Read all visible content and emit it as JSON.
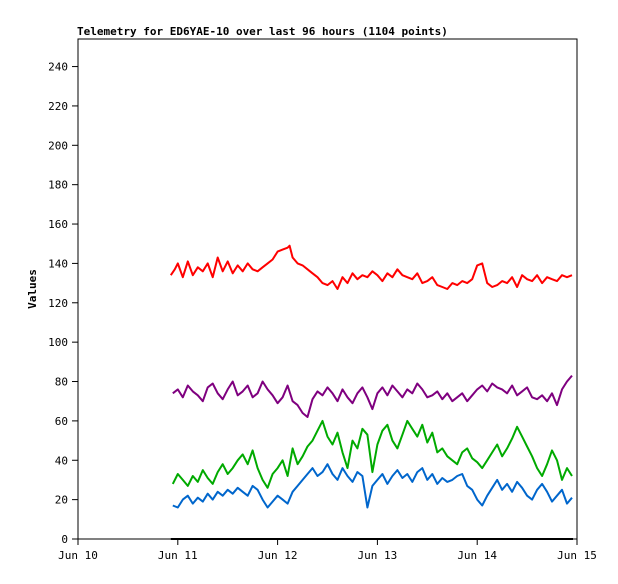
{
  "chart_data": {
    "type": "line",
    "title": "Telemetry for ED6YAE-10 over last 96 hours (1104 points)",
    "xlabel": "",
    "ylabel": "Values",
    "x_ticks": [
      "Jun 10",
      "Jun 11",
      "Jun 12",
      "Jun 13",
      "Jun 14",
      "Jun 15"
    ],
    "xlim": [
      "Jun 10",
      "Jun 15"
    ],
    "ylim": [
      0,
      254
    ],
    "y_ticks": [
      0,
      20,
      40,
      60,
      80,
      100,
      120,
      140,
      160,
      180,
      200,
      220,
      240
    ],
    "grid": false,
    "legend": "none",
    "series": [
      {
        "color": "#ff0000",
        "x": [
          0.93,
          0.97,
          1.0,
          1.05,
          1.1,
          1.15,
          1.2,
          1.25,
          1.3,
          1.35,
          1.4,
          1.45,
          1.5,
          1.55,
          1.6,
          1.65,
          1.7,
          1.75,
          1.8,
          1.85,
          1.9,
          1.95,
          2.0,
          2.05,
          2.1,
          2.12,
          2.15,
          2.2,
          2.25,
          2.3,
          2.35,
          2.4,
          2.45,
          2.5,
          2.55,
          2.6,
          2.65,
          2.7,
          2.75,
          2.8,
          2.85,
          2.9,
          2.95,
          3.0,
          3.05,
          3.1,
          3.15,
          3.2,
          3.25,
          3.3,
          3.35,
          3.4,
          3.45,
          3.5,
          3.55,
          3.6,
          3.65,
          3.7,
          3.75,
          3.8,
          3.85,
          3.9,
          3.95,
          4.0,
          4.05,
          4.1,
          4.15,
          4.2,
          4.25,
          4.3,
          4.35,
          4.4,
          4.45,
          4.5,
          4.55,
          4.6,
          4.65,
          4.7,
          4.75,
          4.8,
          4.85,
          4.9,
          4.95
        ],
        "y": [
          134,
          137,
          140,
          133,
          141,
          134,
          138,
          136,
          140,
          133,
          143,
          136,
          141,
          135,
          139,
          136,
          140,
          137,
          136,
          138,
          140,
          142,
          146,
          147,
          148,
          149,
          143,
          140,
          139,
          137,
          135,
          133,
          130,
          129,
          131,
          127,
          133,
          130,
          135,
          132,
          134,
          133,
          136,
          134,
          131,
          135,
          133,
          137,
          134,
          133,
          132,
          135,
          130,
          131,
          133,
          129,
          128,
          127,
          130,
          129,
          131,
          130,
          132,
          139,
          140,
          130,
          128,
          129,
          131,
          130,
          133,
          128,
          134,
          132,
          131,
          134,
          130,
          133,
          132,
          131,
          134,
          133,
          134
        ]
      },
      {
        "color": "#7f007f",
        "x": [
          0.95,
          1.0,
          1.05,
          1.1,
          1.15,
          1.2,
          1.25,
          1.3,
          1.35,
          1.4,
          1.45,
          1.5,
          1.55,
          1.6,
          1.65,
          1.7,
          1.75,
          1.8,
          1.85,
          1.9,
          1.95,
          2.0,
          2.05,
          2.1,
          2.15,
          2.2,
          2.25,
          2.3,
          2.35,
          2.4,
          2.45,
          2.5,
          2.55,
          2.6,
          2.65,
          2.7,
          2.75,
          2.8,
          2.85,
          2.9,
          2.95,
          3.0,
          3.05,
          3.1,
          3.15,
          3.2,
          3.25,
          3.3,
          3.35,
          3.4,
          3.45,
          3.5,
          3.55,
          3.6,
          3.65,
          3.7,
          3.75,
          3.8,
          3.85,
          3.9,
          3.95,
          4.0,
          4.05,
          4.1,
          4.15,
          4.2,
          4.25,
          4.3,
          4.35,
          4.4,
          4.45,
          4.5,
          4.55,
          4.6,
          4.65,
          4.7,
          4.75,
          4.8,
          4.85,
          4.9,
          4.95
        ],
        "y": [
          74,
          76,
          72,
          78,
          75,
          73,
          70,
          77,
          79,
          74,
          71,
          76,
          80,
          73,
          75,
          78,
          72,
          74,
          80,
          76,
          73,
          69,
          72,
          78,
          70,
          68,
          64,
          62,
          71,
          75,
          73,
          77,
          74,
          70,
          76,
          72,
          69,
          74,
          77,
          72,
          66,
          74,
          77,
          73,
          78,
          75,
          72,
          76,
          74,
          79,
          76,
          72,
          73,
          75,
          71,
          74,
          70,
          72,
          74,
          70,
          73,
          76,
          78,
          75,
          79,
          77,
          76,
          74,
          78,
          73,
          75,
          77,
          72,
          71,
          73,
          70,
          74,
          68,
          76,
          80,
          83
        ]
      },
      {
        "color": "#00aa00",
        "x": [
          0.95,
          1.0,
          1.05,
          1.1,
          1.15,
          1.2,
          1.25,
          1.3,
          1.35,
          1.4,
          1.45,
          1.5,
          1.55,
          1.6,
          1.65,
          1.7,
          1.75,
          1.8,
          1.85,
          1.9,
          1.95,
          2.0,
          2.05,
          2.1,
          2.15,
          2.2,
          2.25,
          2.3,
          2.35,
          2.4,
          2.45,
          2.5,
          2.55,
          2.6,
          2.65,
          2.7,
          2.75,
          2.8,
          2.85,
          2.9,
          2.95,
          3.0,
          3.05,
          3.1,
          3.15,
          3.2,
          3.25,
          3.3,
          3.35,
          3.4,
          3.45,
          3.5,
          3.55,
          3.6,
          3.65,
          3.7,
          3.75,
          3.8,
          3.85,
          3.9,
          3.95,
          4.0,
          4.05,
          4.1,
          4.15,
          4.2,
          4.25,
          4.3,
          4.35,
          4.4,
          4.45,
          4.5,
          4.55,
          4.6,
          4.65,
          4.7,
          4.75,
          4.8,
          4.85,
          4.9,
          4.95
        ],
        "y": [
          28,
          33,
          30,
          27,
          32,
          29,
          35,
          31,
          28,
          34,
          38,
          33,
          36,
          40,
          43,
          38,
          45,
          36,
          30,
          26,
          33,
          36,
          40,
          32,
          46,
          38,
          42,
          47,
          50,
          55,
          60,
          52,
          48,
          54,
          44,
          36,
          50,
          46,
          56,
          53,
          34,
          48,
          55,
          58,
          50,
          46,
          53,
          60,
          56,
          52,
          58,
          49,
          54,
          44,
          46,
          42,
          40,
          38,
          44,
          46,
          41,
          39,
          36,
          40,
          44,
          48,
          42,
          46,
          51,
          57,
          52,
          47,
          42,
          36,
          32,
          38,
          45,
          40,
          30,
          36,
          32
        ]
      },
      {
        "color": "#0066cc",
        "x": [
          0.95,
          1.0,
          1.05,
          1.1,
          1.15,
          1.2,
          1.25,
          1.3,
          1.35,
          1.4,
          1.45,
          1.5,
          1.55,
          1.6,
          1.65,
          1.7,
          1.75,
          1.8,
          1.85,
          1.9,
          1.95,
          2.0,
          2.05,
          2.1,
          2.15,
          2.2,
          2.25,
          2.3,
          2.35,
          2.4,
          2.45,
          2.5,
          2.55,
          2.6,
          2.65,
          2.7,
          2.75,
          2.8,
          2.85,
          2.9,
          2.95,
          3.0,
          3.05,
          3.1,
          3.15,
          3.2,
          3.25,
          3.3,
          3.35,
          3.4,
          3.45,
          3.5,
          3.55,
          3.6,
          3.65,
          3.7,
          3.75,
          3.8,
          3.85,
          3.9,
          3.95,
          4.0,
          4.05,
          4.1,
          4.15,
          4.2,
          4.25,
          4.3,
          4.35,
          4.4,
          4.45,
          4.5,
          4.55,
          4.6,
          4.65,
          4.7,
          4.75,
          4.8,
          4.85,
          4.9,
          4.95
        ],
        "y": [
          17,
          16,
          20,
          22,
          18,
          21,
          19,
          23,
          20,
          24,
          22,
          25,
          23,
          26,
          24,
          22,
          27,
          25,
          20,
          16,
          19,
          22,
          20,
          18,
          24,
          27,
          30,
          33,
          36,
          32,
          34,
          38,
          33,
          30,
          36,
          32,
          29,
          34,
          32,
          16,
          27,
          30,
          33,
          28,
          32,
          35,
          31,
          33,
          29,
          34,
          36,
          30,
          33,
          28,
          31,
          29,
          30,
          32,
          33,
          27,
          25,
          20,
          17,
          22,
          26,
          30,
          25,
          28,
          24,
          29,
          26,
          22,
          20,
          25,
          28,
          24,
          19,
          22,
          25,
          18,
          21
        ]
      }
    ],
    "baseline_series": {
      "color": "#000000",
      "x": [
        0.93,
        4.96
      ],
      "y": [
        0,
        0
      ]
    }
  }
}
